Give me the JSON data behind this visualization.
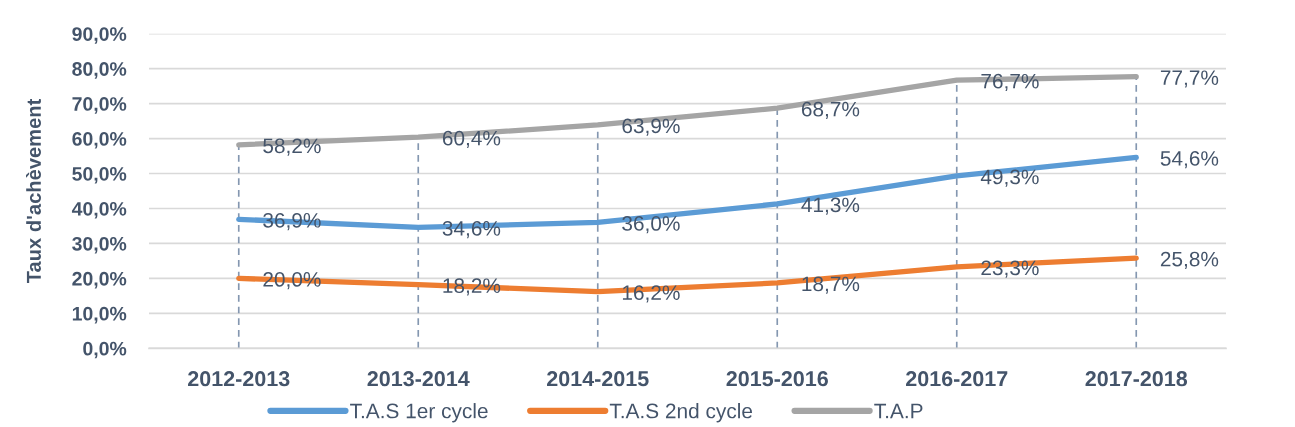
{
  "chart_data": {
    "type": "line",
    "ylabel": "Taux d'achèvement",
    "categories": [
      "2012-2013",
      "2013-2014",
      "2014-2015",
      "2015-2016",
      "2016-2017",
      "2017-2018"
    ],
    "series": [
      {
        "name": "T.A.S 1er cycle",
        "color": "#5b9bd5",
        "values": [
          36.9,
          34.6,
          36.0,
          41.3,
          49.3,
          54.6
        ],
        "value_labels": [
          "36,9%",
          "34,6%",
          "36,0%",
          "41,3%",
          "49,3%",
          "54,6%"
        ]
      },
      {
        "name": "T.A.S 2nd cycle",
        "color": "#ed7d31",
        "values": [
          20.0,
          18.2,
          16.2,
          18.7,
          23.3,
          25.8
        ],
        "value_labels": [
          "20,0%",
          "18,2%",
          "16,2%",
          "18,7%",
          "23,3%",
          "25,8%"
        ]
      },
      {
        "name": "T.A.P",
        "color": "#a5a5a5",
        "values": [
          58.2,
          60.4,
          63.9,
          68.7,
          76.7,
          77.7
        ],
        "value_labels": [
          "58,2%",
          "60,4%",
          "63,9%",
          "68,7%",
          "76,7%",
          "77,7%"
        ]
      }
    ],
    "ylim": [
      0,
      90
    ],
    "yticks": [
      {
        "value": 0,
        "label": "0,0%"
      },
      {
        "value": 10,
        "label": "10,0%"
      },
      {
        "value": 20,
        "label": "20,0%"
      },
      {
        "value": 30,
        "label": "30,0%"
      },
      {
        "value": 40,
        "label": "40,0%"
      },
      {
        "value": 50,
        "label": "50,0%"
      },
      {
        "value": 60,
        "label": "60,0%"
      },
      {
        "value": 70,
        "label": "70,0%"
      },
      {
        "value": 80,
        "label": "80,0%"
      },
      {
        "value": 90,
        "label": "90,0%"
      }
    ],
    "ref_lines": [
      {
        "axis": "x",
        "value": "2012-2013",
        "color": "#8497b0",
        "line_style": "dashed"
      },
      {
        "axis": "x",
        "value": "2013-2014",
        "color": "#8497b0",
        "line_style": "dashed"
      },
      {
        "axis": "x",
        "value": "2014-2015",
        "color": "#8497b0",
        "line_style": "dashed"
      },
      {
        "axis": "x",
        "value": "2015-2016",
        "color": "#8497b0",
        "line_style": "dashed"
      },
      {
        "axis": "x",
        "value": "2016-2017",
        "color": "#8497b0",
        "line_style": "dashed"
      },
      {
        "axis": "x",
        "value": "2017-2018",
        "color": "#8497b0",
        "line_style": "dashed"
      }
    ],
    "grid": "y",
    "legend": "bottom"
  }
}
